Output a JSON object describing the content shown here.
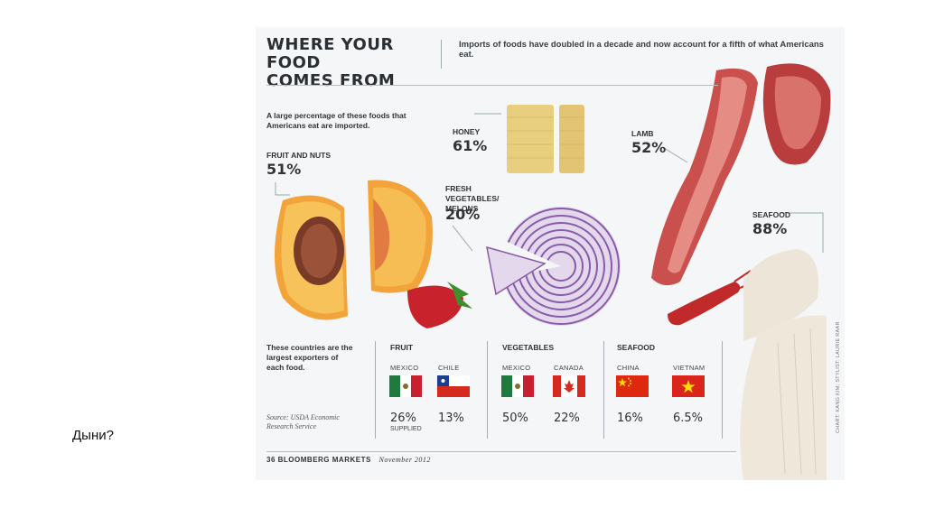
{
  "question": "Дыни?",
  "infographic": {
    "title_line1": "WHERE YOUR FOOD",
    "title_line2": "COMES FROM",
    "subtitle": "Imports of foods have doubled in a decade and now account for a fifth of what Americans eat.",
    "intro": "A large percentage of these foods that Americans eat are imported.",
    "categories": [
      {
        "name": "FRUIT AND NUTS",
        "percent": "51%"
      },
      {
        "name": "HONEY",
        "percent": "61%"
      },
      {
        "name": "FRESH VEGETABLES/ MELONS",
        "percent": "20%"
      },
      {
        "name": "LAMB",
        "percent": "52%"
      },
      {
        "name": "SEAFOOD",
        "percent": "88%"
      }
    ],
    "exporters_label": "These countries are the largest exporters of each food.",
    "source": "Source: USDA Economic Research Service",
    "groups": [
      {
        "title": "FRUIT",
        "countries": [
          {
            "name": "MEXICO",
            "percent": "26%",
            "note": "SUPPLIED",
            "flag": "mexico-flag"
          },
          {
            "name": "CHILE",
            "percent": "13%",
            "flag": "chile-flag"
          }
        ]
      },
      {
        "title": "VEGETABLES",
        "countries": [
          {
            "name": "MEXICO",
            "percent": "50%",
            "flag": "mexico-flag"
          },
          {
            "name": "CANADA",
            "percent": "22%",
            "flag": "canada-flag"
          }
        ]
      },
      {
        "title": "SEAFOOD",
        "countries": [
          {
            "name": "CHINA",
            "percent": "16%",
            "flag": "china-flag"
          },
          {
            "name": "VIETNAM",
            "percent": "6.5%",
            "flag": "vietnam-flag"
          }
        ]
      }
    ],
    "footer_page": "36",
    "footer_pub": "BLOOMBERG MARKETS",
    "footer_date": "November 2012",
    "credit": "CHART: KANG KIM; STYLIST: LAURIE RAAR",
    "colors": {
      "mexico_green": "#1f7a3d",
      "mexico_red": "#c8202f",
      "chile_blue": "#1b3f8f",
      "chile_red": "#d52b1e",
      "canada_red": "#d52b1e",
      "china_red": "#de2910",
      "vietnam_red": "#da251d",
      "star_yellow": "#ffde00"
    }
  }
}
